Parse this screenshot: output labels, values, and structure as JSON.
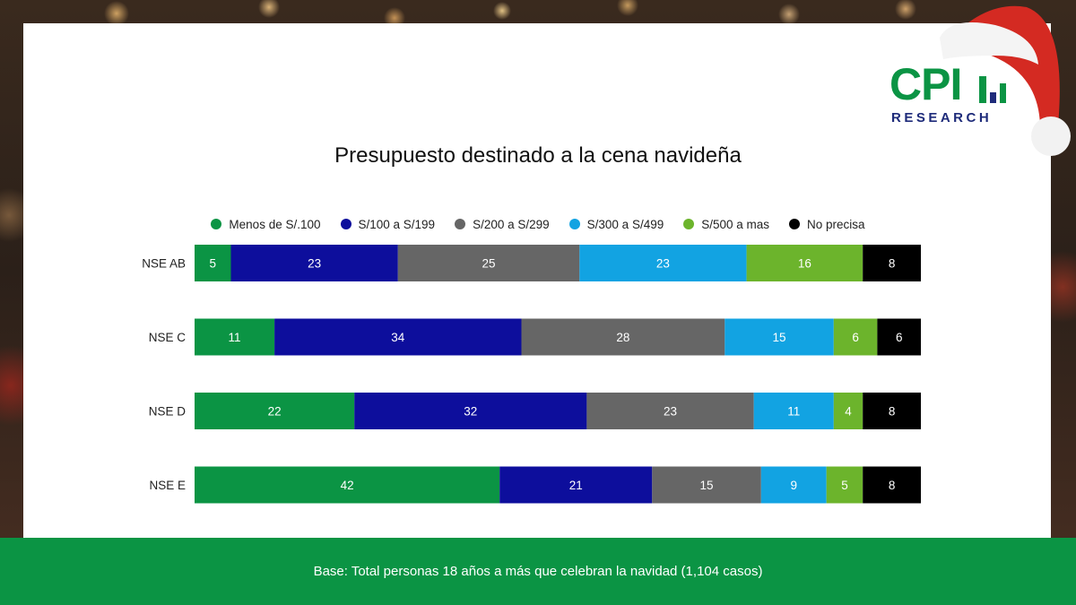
{
  "brand": {
    "logo_main": "CPI",
    "logo_sub": "RESEARCH"
  },
  "footer": {
    "text": "Base: Total personas 18 años a más que celebran la navidad (1,104 casos)"
  },
  "chart_data": {
    "type": "bar",
    "orientation": "horizontal",
    "stacked": true,
    "title": "Presupuesto destinado a la cena navideña",
    "categories": [
      "NSE AB",
      "NSE C",
      "NSE D",
      "NSE E"
    ],
    "series": [
      {
        "name": "Menos de S/.100",
        "color": "#0b9444",
        "values": [
          5,
          11,
          22,
          42
        ]
      },
      {
        "name": "S/100 a S/199",
        "color": "#0d0e9c",
        "values": [
          23,
          34,
          32,
          21
        ]
      },
      {
        "name": "S/200 a S/299",
        "color": "#666666",
        "values": [
          25,
          28,
          23,
          15
        ]
      },
      {
        "name": "S/300 a S/499",
        "color": "#12a3e2",
        "values": [
          23,
          15,
          11,
          9
        ]
      },
      {
        "name": "S/500 a mas",
        "color": "#6cb42c",
        "values": [
          16,
          6,
          4,
          5
        ]
      },
      {
        "name": "No precisa",
        "color": "#000000",
        "values": [
          8,
          6,
          8,
          8
        ]
      }
    ],
    "xlim": [
      0,
      100
    ],
    "legend": "top",
    "grid": false,
    "data_labels": true
  }
}
